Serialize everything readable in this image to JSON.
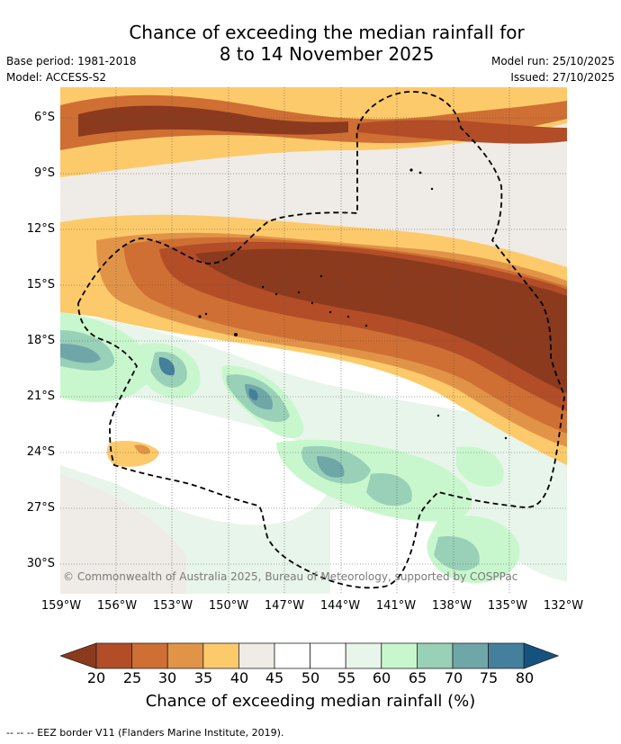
{
  "title_line1": "Chance of exceeding the median rainfall for",
  "title_line2": "8 to 14 November 2025",
  "meta_left": [
    "Base period: 1981-2018",
    "Model: ACCESS-S2"
  ],
  "meta_right": [
    "Model run: 25/10/2025",
    "Issued: 27/10/2025"
  ],
  "lat_labels": [
    "6°S",
    "9°S",
    "12°S",
    "15°S",
    "18°S",
    "21°S",
    "24°S",
    "27°S",
    "30°S"
  ],
  "lon_labels": [
    "159°W",
    "156°W",
    "153°W",
    "150°W",
    "147°W",
    "144°W",
    "141°W",
    "138°W",
    "135°W",
    "132°W"
  ],
  "credit": "© Commonwealth of Australia 2025, Bureau of Meteorology, supported by COSPPac",
  "colorbar": {
    "ticks": [
      "20",
      "25",
      "30",
      "35",
      "40",
      "45",
      "50",
      "55",
      "60",
      "65",
      "70",
      "75",
      "80"
    ],
    "colors": [
      "#8b3a1d",
      "#b24d27",
      "#cf6f33",
      "#e19448",
      "#fdca6b",
      "#efebe6",
      "#ffffff",
      "#ffffff",
      "#e8f5ea",
      "#c9f7cd",
      "#99d0b8",
      "#6fa6a8",
      "#447f9c",
      "#14537f"
    ],
    "title": "Chance of exceeding median rainfall (%)"
  },
  "footer": "--  --  -- EEZ border V11 (Flanders Marine Institute, 2019)."
}
